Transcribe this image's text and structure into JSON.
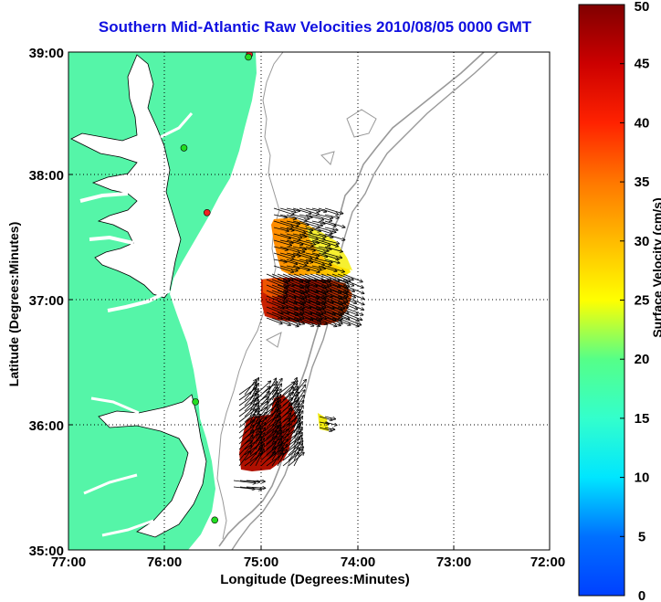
{
  "title": "Southern Mid-Atlantic Raw Velocities 2010/08/05 0000 GMT",
  "axes": {
    "xlabel": "Longitude (Degrees:Minutes)",
    "ylabel": "Latitude (Degrees:Minutes)",
    "x_ticks": [
      "77:00",
      "76:00",
      "75:00",
      "74:00",
      "73:00",
      "72:00"
    ],
    "y_ticks": [
      "39:00",
      "38:00",
      "37:00",
      "36:00",
      "35:00"
    ],
    "xlim": [
      -77,
      -72
    ],
    "ylim": [
      35,
      39
    ],
    "grid": "dotted"
  },
  "colorbar": {
    "label": "Surface Velocity (cm/s)",
    "ticks": [
      "0",
      "5",
      "10",
      "15",
      "20",
      "25",
      "30",
      "35",
      "40",
      "45",
      "50"
    ],
    "range": [
      0,
      50
    ],
    "colormap": "jet"
  },
  "colors": {
    "land": "#55f5a8",
    "water": "#ffffff",
    "coast_line": "#000000",
    "bathymetry": "#999999",
    "title": "#1010e0",
    "station_active": "#22dd22",
    "station_inactive": "#ee2222"
  },
  "stations": [
    {
      "lon": -75.12,
      "lat": 38.98,
      "status": "inactive"
    },
    {
      "lon": -75.13,
      "lat": 38.96,
      "status": "active"
    },
    {
      "lon": -75.8,
      "lat": 38.23,
      "status": "active"
    },
    {
      "lon": -75.56,
      "lat": 37.71,
      "status": "inactive"
    },
    {
      "lon": -75.68,
      "lat": 36.19,
      "status": "active"
    },
    {
      "lon": -75.48,
      "lat": 35.24,
      "status": "active"
    }
  ]
}
